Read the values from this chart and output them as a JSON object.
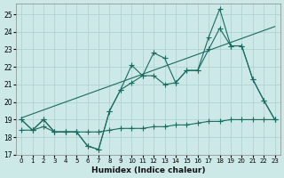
{
  "xlabel": "Humidex (Indice chaleur)",
  "xlim": [
    -0.5,
    23.5
  ],
  "ylim": [
    17,
    25.6
  ],
  "yticks": [
    17,
    18,
    19,
    20,
    21,
    22,
    23,
    24,
    25
  ],
  "xticks": [
    0,
    1,
    2,
    3,
    4,
    5,
    6,
    7,
    8,
    9,
    10,
    11,
    12,
    13,
    14,
    15,
    16,
    17,
    18,
    19,
    20,
    21,
    22,
    23
  ],
  "background_color": "#cce9e7",
  "grid_color": "#aacfcc",
  "line_color": "#1a6b60",
  "line1_y": [
    19.0,
    18.4,
    19.0,
    18.3,
    18.3,
    18.3,
    17.5,
    17.3,
    19.5,
    20.7,
    22.1,
    21.5,
    22.8,
    22.5,
    21.1,
    21.8,
    21.8,
    23.7,
    25.3,
    23.2,
    23.2,
    21.3,
    20.1,
    19.0
  ],
  "line2_y": [
    19.0,
    18.4,
    19.0,
    18.3,
    18.3,
    18.3,
    17.5,
    17.3,
    19.5,
    20.7,
    21.1,
    21.5,
    21.5,
    21.0,
    21.1,
    21.8,
    21.8,
    23.0,
    24.2,
    23.2,
    23.2,
    21.3,
    20.1,
    19.0
  ],
  "line3_x": [
    0,
    23
  ],
  "line3_y": [
    19.1,
    24.3
  ],
  "line4_y": [
    18.4,
    18.4,
    18.6,
    18.3,
    18.3,
    18.3,
    18.3,
    18.3,
    18.4,
    18.5,
    18.5,
    18.5,
    18.6,
    18.6,
    18.7,
    18.7,
    18.8,
    18.9,
    18.9,
    19.0,
    19.0,
    19.0,
    19.0,
    19.0
  ]
}
